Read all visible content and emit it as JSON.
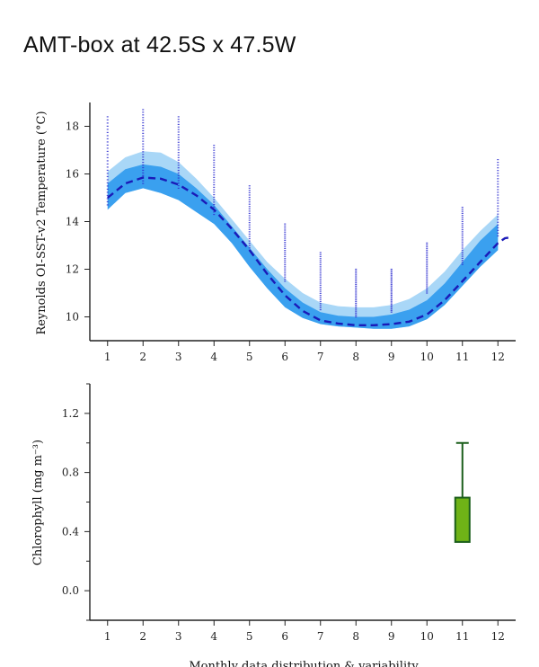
{
  "page": {
    "title": "AMT-box at 42.5S x 47.5W",
    "footer_label": "Monthly data distribution & variability"
  },
  "chart_data": [
    {
      "type": "line",
      "ylabel": "Reynolds OI-SST-v2 Temperature (°C)",
      "xlabel": "",
      "x_ticks": [
        1,
        2,
        3,
        4,
        5,
        6,
        7,
        8,
        9,
        10,
        11,
        12
      ],
      "y_ticks": [
        10,
        12,
        14,
        16,
        18
      ],
      "ylim": [
        9,
        19
      ],
      "xlim": [
        0.5,
        12.5
      ],
      "colors": {
        "mean_line": "#1a1ab8",
        "inner_band": "#3aa0ef",
        "outer_band": "#a9d7f7",
        "points": "#3030d0"
      },
      "series": [
        {
          "kind": "mean-dashed",
          "x": [
            1,
            1.5,
            2,
            2.5,
            3,
            3.5,
            4,
            4.5,
            5,
            5.5,
            6,
            6.5,
            7,
            7.5,
            8,
            8.5,
            9,
            9.5,
            10,
            10.5,
            11,
            11.5,
            12,
            12.2,
            12.4
          ],
          "y": [
            15.0,
            15.6,
            15.85,
            15.8,
            15.55,
            15.1,
            14.5,
            13.7,
            12.8,
            11.8,
            10.9,
            10.25,
            9.85,
            9.72,
            9.65,
            9.65,
            9.7,
            9.8,
            10.1,
            10.7,
            11.5,
            12.3,
            13.1,
            13.3,
            13.35
          ]
        },
        {
          "kind": "inner-band",
          "x": [
            1,
            1.5,
            2,
            2.5,
            3,
            3.5,
            4,
            4.5,
            5,
            5.5,
            6,
            6.5,
            7,
            7.5,
            8,
            8.5,
            9,
            9.5,
            10,
            10.5,
            11,
            11.5,
            12
          ],
          "upper": [
            15.6,
            16.2,
            16.4,
            16.3,
            16.0,
            15.4,
            14.7,
            13.8,
            12.9,
            12.0,
            11.2,
            10.6,
            10.2,
            10.05,
            10.0,
            10.0,
            10.1,
            10.3,
            10.7,
            11.4,
            12.3,
            13.2,
            13.9
          ],
          "lower": [
            14.5,
            15.2,
            15.4,
            15.2,
            14.9,
            14.4,
            13.9,
            13.1,
            12.1,
            11.2,
            10.4,
            9.95,
            9.7,
            9.6,
            9.55,
            9.5,
            9.5,
            9.6,
            9.9,
            10.5,
            11.3,
            12.1,
            12.8
          ]
        },
        {
          "kind": "outer-band",
          "x": [
            1,
            1.5,
            2,
            2.5,
            3,
            3.5,
            4,
            4.5,
            5,
            5.5,
            6,
            6.5,
            7,
            7.5,
            8,
            8.5,
            9,
            9.5,
            10,
            10.5,
            11,
            11.5,
            12
          ],
          "upper": [
            16.1,
            16.7,
            16.95,
            16.9,
            16.5,
            15.8,
            15.0,
            14.1,
            13.2,
            12.3,
            11.6,
            11.0,
            10.6,
            10.45,
            10.4,
            10.4,
            10.5,
            10.75,
            11.2,
            11.9,
            12.8,
            13.6,
            14.3
          ],
          "lower": [
            14.5,
            15.2,
            15.4,
            15.2,
            14.9,
            14.4,
            13.9,
            13.1,
            12.1,
            11.2,
            10.4,
            9.95,
            9.7,
            9.6,
            9.55,
            9.5,
            9.5,
            9.6,
            9.9,
            10.5,
            11.3,
            12.1,
            12.8
          ]
        }
      ],
      "point_ranges": [
        {
          "x": 1,
          "min": 14.7,
          "max": 18.4
        },
        {
          "x": 2,
          "min": 15.6,
          "max": 18.7
        },
        {
          "x": 3,
          "min": 15.4,
          "max": 18.4
        },
        {
          "x": 4,
          "min": 14.3,
          "max": 17.2
        },
        {
          "x": 5,
          "min": 12.8,
          "max": 15.5
        },
        {
          "x": 6,
          "min": 11.5,
          "max": 13.9
        },
        {
          "x": 7,
          "min": 10.3,
          "max": 12.7
        },
        {
          "x": 8,
          "min": 10.0,
          "max": 12.0
        },
        {
          "x": 9,
          "min": 10.2,
          "max": 12.0
        },
        {
          "x": 10,
          "min": 11.0,
          "max": 13.1
        },
        {
          "x": 11,
          "min": 12.2,
          "max": 14.6
        },
        {
          "x": 12,
          "min": 13.4,
          "max": 16.6
        }
      ]
    },
    {
      "type": "box",
      "ylabel": "Chlorophyll (mg m⁻³)",
      "xlabel": "",
      "x_ticks": [
        1,
        2,
        3,
        4,
        5,
        6,
        7,
        8,
        9,
        10,
        11,
        12
      ],
      "y_ticks": [
        0.0,
        0.4,
        0.8,
        1.2
      ],
      "y_tick_labels": [
        "0.0",
        "0.4",
        "0.8",
        "1.2"
      ],
      "ylim": [
        -0.2,
        1.4
      ],
      "xlim": [
        0.5,
        12.5
      ],
      "colors": {
        "box_fill": "#6fb317",
        "box_stroke": "#1a5e1a"
      },
      "boxes": [
        {
          "x": 11,
          "q1": 0.33,
          "q3": 0.63,
          "whisker_high": 1.0
        }
      ]
    }
  ]
}
